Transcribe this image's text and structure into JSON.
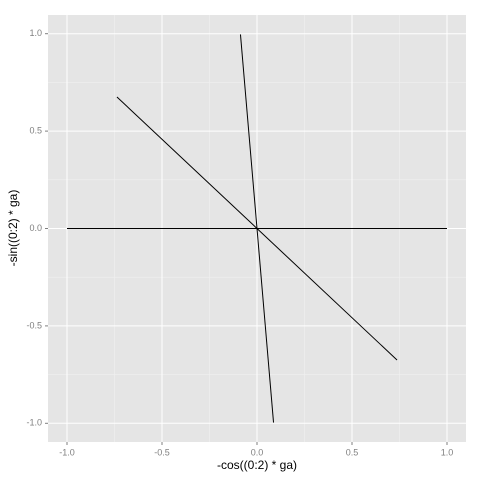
{
  "chart_data": {
    "type": "segment",
    "x_label": "-cos((0:2) * ga)",
    "y_label": "-sin((0:2) * ga)",
    "segments": [
      {
        "x": [
          -1,
          1
        ],
        "y": [
          0,
          0
        ]
      },
      {
        "x": [
          0.737,
          -0.737
        ],
        "y": [
          -0.675,
          0.675
        ]
      },
      {
        "x": [
          -0.087,
          0.087
        ],
        "y": [
          0.996,
          -0.996
        ]
      }
    ],
    "color": "#000000",
    "xlim": [
      -1.1,
      1.1
    ],
    "ylim": [
      -1.096,
      1.096
    ],
    "xticks": [
      {
        "value": -1,
        "label": "-1.0"
      },
      {
        "value": -0.5,
        "label": "-0.5"
      },
      {
        "value": 0,
        "label": "0.0"
      },
      {
        "value": 0.5,
        "label": "0.5"
      },
      {
        "value": 1,
        "label": "1.0"
      }
    ],
    "yticks": [
      {
        "value": -1,
        "label": "-1.0"
      },
      {
        "value": -0.5,
        "label": "-0.5"
      },
      {
        "value": 0,
        "label": "0.0"
      },
      {
        "value": 0.5,
        "label": "0.5"
      },
      {
        "value": 1,
        "label": "1.0"
      }
    ],
    "grid": true
  }
}
